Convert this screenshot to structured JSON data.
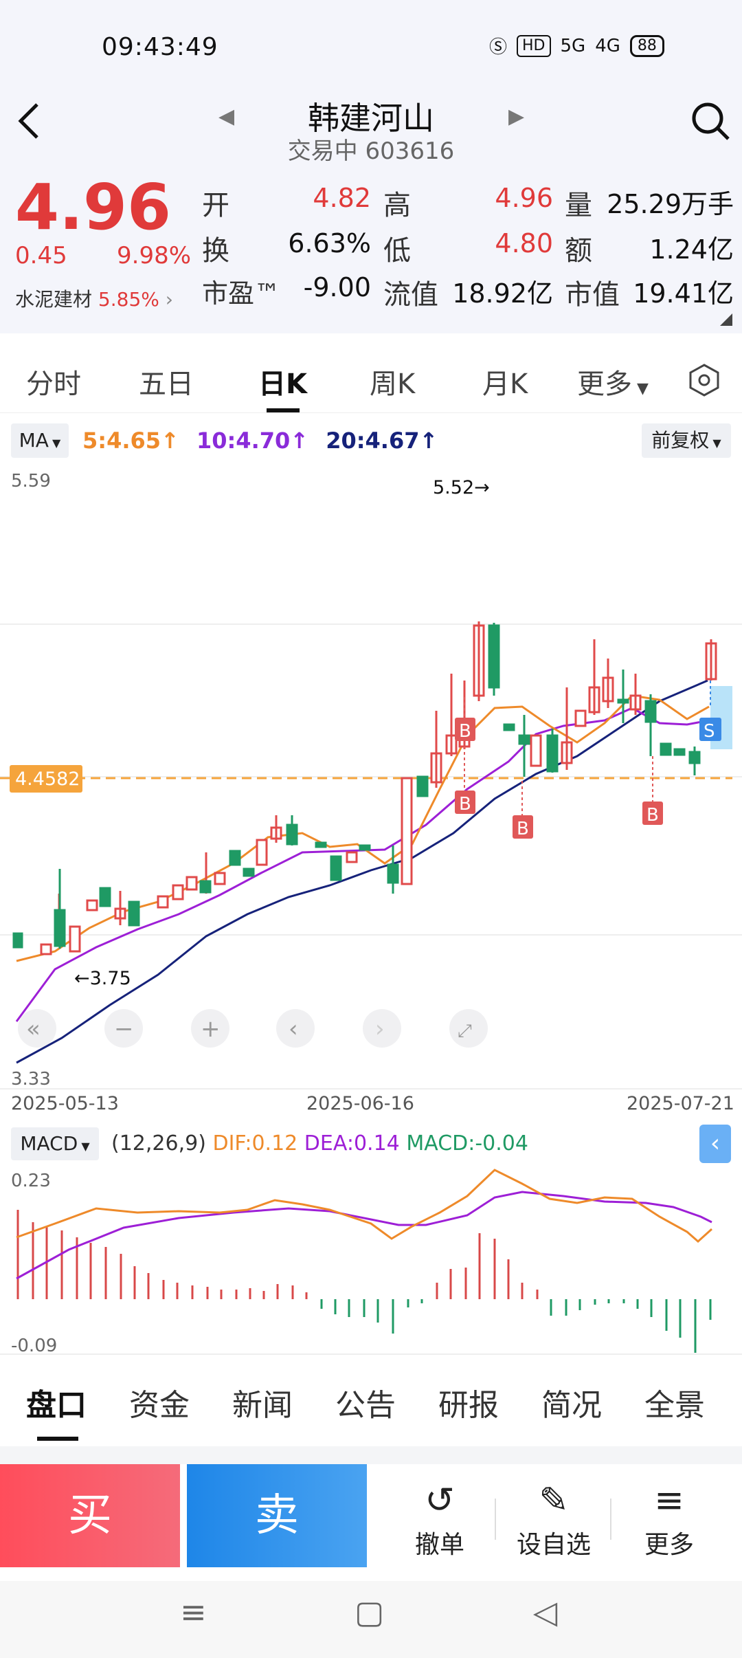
{
  "status": {
    "time": "09:43:49",
    "icons": [
      "shield-icon",
      "HD",
      "5G",
      "4G"
    ],
    "battery": "88"
  },
  "header": {
    "title": "韩建河山",
    "subtitle": "交易中 603616"
  },
  "quote": {
    "price": "4.96",
    "change": "0.45",
    "change_pct": "9.98%",
    "sector_name": "水泥建材",
    "sector_pct": "5.85%",
    "fields": [
      {
        "label": "开",
        "value": "4.82"
      },
      {
        "label": "高",
        "value": "4.96"
      },
      {
        "label": "量",
        "value": "25.29万手"
      },
      {
        "label": "换",
        "value": "6.63%"
      },
      {
        "label": "低",
        "value": "4.80"
      },
      {
        "label": "额",
        "value": "1.24亿"
      },
      {
        "label": "市盈™",
        "value": "-9.00"
      },
      {
        "label": "流值",
        "value": "18.92亿"
      },
      {
        "label": "市值",
        "value": "19.41亿"
      }
    ]
  },
  "tabs": [
    "分时",
    "五日",
    "日K",
    "周K",
    "月K",
    "更多"
  ],
  "ma": {
    "button": "MA",
    "ma5": "5:4.65",
    "ma10": "10:4.70",
    "ma20": "20:4.67",
    "adjust": "前复权"
  },
  "kchart": {
    "y_top": "5.59",
    "y_bottom": "3.33",
    "ref_line": "4.4582",
    "high_label": "5.52",
    "low_label": "3.75",
    "dates": [
      "2025-05-13",
      "2025-06-16",
      "2025-07-21"
    ],
    "marker_b": "B",
    "marker_s": "S"
  },
  "chart_data": {
    "type": "line",
    "title": "",
    "x_range": [
      "2025-05-13",
      "2025-07-21"
    ],
    "ylim": [
      3.33,
      5.59
    ],
    "high": 5.52,
    "low": 3.75,
    "ref_level": 4.4582,
    "ma": {
      "MA5": 4.65,
      "MA10": 4.7,
      "MA20": 4.67
    },
    "macd": {
      "params": "(12,26,9)",
      "DIF": 0.12,
      "DEA": 0.14,
      "MACD": -0.04,
      "ylim": [
        -0.09,
        0.23
      ]
    }
  },
  "macd": {
    "button": "MACD",
    "params": "(12,26,9)",
    "dif": "DIF:0.12",
    "dea": "DEA:0.14",
    "macd": "MACD:-0.04",
    "y_top": "0.23",
    "y_bottom": "-0.09"
  },
  "bottom_tabs": [
    "盘口",
    "资金",
    "新闻",
    "公告",
    "研报",
    "简况",
    "全景"
  ],
  "actions": {
    "buy": "买",
    "sell": "卖",
    "cancel": "撤单",
    "watch": "设自选",
    "more": "更多"
  }
}
